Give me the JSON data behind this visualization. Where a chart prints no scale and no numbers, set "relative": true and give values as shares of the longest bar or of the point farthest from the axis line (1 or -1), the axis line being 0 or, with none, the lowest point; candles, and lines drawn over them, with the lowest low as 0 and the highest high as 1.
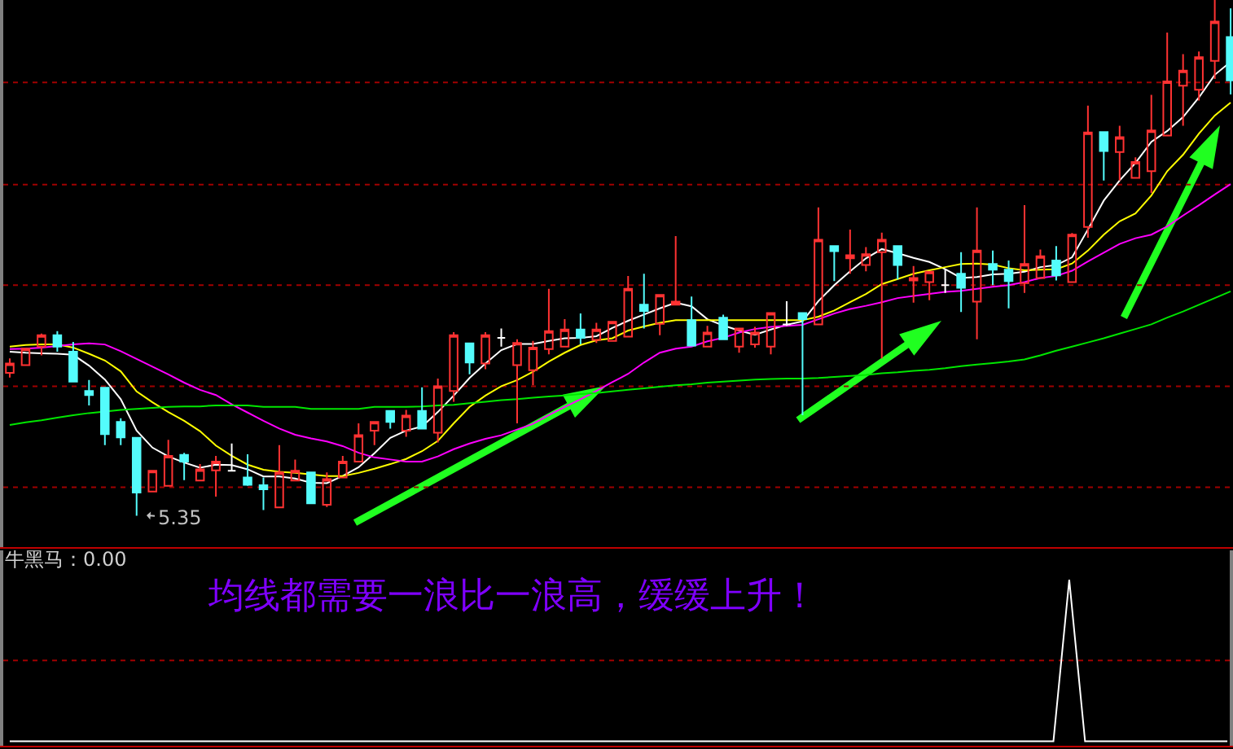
{
  "chart_data": [
    {
      "type": "candlestick",
      "relative": true,
      "categories": [
        null,
        null,
        null,
        null,
        null,
        null,
        null,
        null,
        null,
        null,
        null,
        null,
        null,
        null,
        null,
        null,
        null,
        null,
        null,
        null,
        null,
        null,
        null,
        null,
        null,
        null,
        null,
        null,
        null,
        null,
        null,
        null,
        null,
        null,
        null,
        null,
        null,
        null,
        null,
        null,
        null,
        null,
        null,
        null,
        null,
        null,
        null,
        null,
        null,
        null,
        null,
        null,
        null,
        null,
        null,
        null,
        null,
        null,
        null,
        null,
        null,
        null,
        null,
        null,
        null,
        null,
        null,
        null,
        null,
        null,
        null,
        null,
        null,
        null,
        null,
        null,
        null,
        null
      ],
      "ohlc": [
        [
          0.277,
          0.305,
          0.268,
          0.295
        ],
        [
          0.292,
          0.324,
          0.292,
          0.324
        ],
        [
          0.328,
          0.353,
          0.311,
          0.35
        ],
        [
          0.35,
          0.358,
          0.318,
          0.328
        ],
        [
          0.318,
          0.337,
          0.26,
          0.26
        ],
        [
          0.242,
          0.263,
          0.214,
          0.234
        ],
        [
          0.248,
          0.248,
          0.137,
          0.158
        ],
        [
          0.182,
          0.189,
          0.137,
          0.152
        ],
        [
          0.151,
          0.151,
          0,
          0.045
        ],
        [
          0.047,
          0.087,
          0.047,
          0.087
        ],
        [
          0.058,
          0.147,
          0.058,
          0.116
        ],
        [
          0.118,
          0.122,
          0.069,
          0.105
        ],
        [
          0.068,
          0.1,
          0.068,
          0.09
        ],
        [
          0.088,
          0.116,
          0.037,
          0.105
        ],
        [
          0.087,
          0.14,
          0.087,
          0.087
        ],
        [
          0.074,
          0.119,
          0.058,
          0.06
        ],
        [
          0.059,
          0.074,
          0.011,
          0.051
        ],
        [
          0.016,
          0.137,
          0.016,
          0.084
        ],
        [
          0.068,
          0.109,
          0.068,
          0.087
        ],
        [
          0.084,
          0.084,
          0.024,
          0.024
        ],
        [
          0.021,
          0.084,
          0.017,
          0.071
        ],
        [
          0.074,
          0.116,
          0.074,
          0.105
        ],
        [
          0.105,
          0.179,
          0.105,
          0.156
        ],
        [
          0.165,
          0.182,
          0.137,
          0.182
        ],
        [
          0.203,
          0.203,
          0.169,
          0.182
        ],
        [
          0.165,
          0.205,
          0.153,
          0.194
        ],
        [
          0.203,
          0.249,
          0.169,
          0.169
        ],
        [
          0.161,
          0.266,
          0.142,
          0.251
        ],
        [
          0.242,
          0.356,
          0.221,
          0.35
        ],
        [
          0.334,
          0.334,
          0.274,
          0.297
        ],
        [
          0.295,
          0.356,
          0.284,
          0.35
        ],
        [
          0.345,
          0.363,
          0.328,
          0.345
        ],
        [
          0.292,
          0.342,
          0.179,
          0.335
        ],
        [
          0.282,
          0.339,
          0.253,
          0.326
        ],
        [
          0.323,
          0.44,
          0.313,
          0.358
        ],
        [
          0.328,
          0.381,
          0.328,
          0.361
        ],
        [
          0.361,
          0.392,
          0.332,
          0.345
        ],
        [
          0.341,
          0.374,
          0.335,
          0.361
        ],
        [
          0.339,
          0.376,
          0.339,
          0.376
        ],
        [
          0.347,
          0.465,
          0.347,
          0.44
        ],
        [
          0.409,
          0.469,
          0.363,
          0.397
        ],
        [
          0.372,
          0.428,
          0.35,
          0.428
        ],
        [
          0.409,
          0.542,
          0.409,
          0.415
        ],
        [
          0.379,
          0.425,
          0.33,
          0.33
        ],
        [
          0.328,
          0.368,
          0.328,
          0.355
        ],
        [
          0.384,
          0.39,
          0.342,
          0.342
        ],
        [
          0.328,
          0.363,
          0.316,
          0.363
        ],
        [
          0.332,
          0.366,
          0.326,
          0.355
        ],
        [
          0.328,
          0.393,
          0.313,
          0.393
        ],
        [
          0.371,
          0.416,
          0.368,
          0.371
        ],
        [
          0.393,
          0.393,
          0.195,
          0.381
        ],
        [
          0.371,
          0.598,
          0.371,
          0.535
        ],
        [
          0.523,
          0.523,
          0.455,
          0.513
        ],
        [
          0.499,
          0.555,
          0.469,
          0.505
        ],
        [
          0.486,
          0.521,
          0.474,
          0.507
        ],
        [
          0.511,
          0.549,
          0.305,
          0.535
        ],
        [
          0.523,
          0.523,
          0.458,
          0.486
        ],
        [
          0.456,
          0.484,
          0.413,
          0.461
        ],
        [
          0.453,
          0.473,
          0.418,
          0.473
        ],
        [
          0.447,
          0.479,
          0.432,
          0.447
        ],
        [
          0.469,
          0.511,
          0.395,
          0.442
        ],
        [
          0.415,
          0.598,
          0.342,
          0.514
        ],
        [
          0.488,
          0.514,
          0.447,
          0.477
        ],
        [
          0.477,
          0.495,
          0.402,
          0.455
        ],
        [
          0.451,
          0.602,
          0.432,
          0.488
        ],
        [
          0.461,
          0.516,
          0.461,
          0.503
        ],
        [
          0.495,
          0.523,
          0.456,
          0.466
        ],
        [
          0.453,
          0.548,
          0.453,
          0.545
        ],
        [
          0.56,
          0.795,
          0.539,
          0.743
        ],
        [
          0.744,
          0.744,
          0.65,
          0.707
        ],
        [
          0.705,
          0.756,
          0.65,
          0.734
        ],
        [
          0.655,
          0.695,
          0.655,
          0.686
        ],
        [
          0.668,
          0.816,
          0.626,
          0.747
        ],
        [
          0.737,
          0.937,
          0.737,
          0.842
        ],
        [
          0.834,
          0.895,
          0.756,
          0.863
        ],
        [
          0.826,
          0.9,
          0.805,
          0.889
        ],
        [
          0.882,
          1,
          0.847,
          0.958
        ],
        [
          0.928,
          0.984,
          0.817,
          0.844
        ]
      ],
      "colors": [
        "#ff3232",
        "#ff3232",
        "#ff3232",
        "#54fcfc",
        "#54fcfc",
        "#54fcfc",
        "#54fcfc",
        "#54fcfc",
        "#54fcfc",
        "#ff3232",
        "#ff3232",
        "#54fcfc",
        "#ff3232",
        "#ff3232",
        "#ffffff",
        "#54fcfc",
        "#54fcfc",
        "#ff3232",
        "#ff3232",
        "#54fcfc",
        "#ff3232",
        "#ff3232",
        "#ff3232",
        "#ff3232",
        "#54fcfc",
        "#ff3232",
        "#54fcfc",
        "#ff3232",
        "#ff3232",
        "#54fcfc",
        "#ff3232",
        "#ffffff",
        "#ff3232",
        "#ff3232",
        "#ff3232",
        "#ff3232",
        "#54fcfc",
        "#ff3232",
        "#ff3232",
        "#ff3232",
        "#54fcfc",
        "#ff3232",
        "#ff3232",
        "#54fcfc",
        "#ff3232",
        "#54fcfc",
        "#ff3232",
        "#ff3232",
        "#ff3232",
        "#ffffff",
        "#54fcfc",
        "#ff3232",
        "#54fcfc",
        "#ff3232",
        "#ff3232",
        "#ff3232",
        "#54fcfc",
        "#ff3232",
        "#ff3232",
        "#ffffff",
        "#54fcfc",
        "#ff3232",
        "#54fcfc",
        "#54fcfc",
        "#ff3232",
        "#ff3232",
        "#54fcfc",
        "#ff3232",
        "#ff3232",
        "#54fcfc",
        "#ff3232",
        "#ff3232",
        "#ff3232",
        "#ff3232",
        "#ff3232",
        "#ff3232",
        "#ff3232",
        "#54fcfc"
      ],
      "series": [
        {
          "type": "line",
          "color": "#ffffff",
          "values": [
            0.318,
            0.316,
            0.315,
            0.314,
            0.312,
            0.291,
            0.264,
            0.226,
            0.165,
            0.132,
            0.115,
            0.103,
            0.093,
            0.099,
            0.098,
            0.09,
            0.076,
            0.076,
            0.072,
            0.064,
            0.063,
            0.077,
            0.094,
            0.121,
            0.151,
            0.165,
            0.173,
            0.201,
            0.233,
            0.267,
            0.295,
            0.321,
            0.333,
            0.333,
            0.339,
            0.344,
            0.345,
            0.348,
            0.364,
            0.378,
            0.39,
            0.402,
            0.413,
            0.406,
            0.381,
            0.369,
            0.359,
            0.351,
            0.361,
            0.37,
            0.377,
            0.416,
            0.447,
            0.474,
            0.499,
            0.517,
            0.509,
            0.5,
            0.492,
            0.478,
            0.461,
            0.463,
            0.468,
            0.469,
            0.473,
            0.482,
            0.486,
            0.501,
            0.555,
            0.611,
            0.65,
            0.684,
            0.725,
            0.746,
            0.773,
            0.811,
            0.855,
            0.88
          ]
        },
        {
          "type": "line",
          "color": "#ffff00",
          "values": [
            0.328,
            0.331,
            0.332,
            0.332,
            0.326,
            0.314,
            0.301,
            0.28,
            0.241,
            0.22,
            0.201,
            0.184,
            0.164,
            0.136,
            0.116,
            0.099,
            0.089,
            0.085,
            0.083,
            0.08,
            0.077,
            0.077,
            0.083,
            0.091,
            0.1,
            0.11,
            0.125,
            0.145,
            0.179,
            0.211,
            0.233,
            0.251,
            0.263,
            0.279,
            0.299,
            0.316,
            0.331,
            0.34,
            0.344,
            0.359,
            0.367,
            0.374,
            0.379,
            0.379,
            0.379,
            0.379,
            0.379,
            0.379,
            0.379,
            0.379,
            0.379,
            0.386,
            0.398,
            0.414,
            0.43,
            0.449,
            0.459,
            0.469,
            0.476,
            0.482,
            0.488,
            0.489,
            0.487,
            0.48,
            0.476,
            0.477,
            0.478,
            0.489,
            0.514,
            0.545,
            0.571,
            0.586,
            0.621,
            0.668,
            0.7,
            0.741,
            0.776,
            0.801
          ]
        },
        {
          "type": "line",
          "color": "#ff00ff",
          "values": [
            0.323,
            0.324,
            0.326,
            0.329,
            0.332,
            0.334,
            0.332,
            0.319,
            0.304,
            0.289,
            0.274,
            0.258,
            0.244,
            0.234,
            0.216,
            0.2,
            0.184,
            0.169,
            0.157,
            0.15,
            0.144,
            0.135,
            0.122,
            0.113,
            0.109,
            0.105,
            0.105,
            0.115,
            0.129,
            0.14,
            0.149,
            0.156,
            0.167,
            0.178,
            0.195,
            0.211,
            0.226,
            0.242,
            0.259,
            0.275,
            0.297,
            0.316,
            0.324,
            0.328,
            0.338,
            0.345,
            0.355,
            0.362,
            0.366,
            0.368,
            0.37,
            0.381,
            0.392,
            0.401,
            0.407,
            0.414,
            0.422,
            0.426,
            0.43,
            0.434,
            0.436,
            0.44,
            0.444,
            0.447,
            0.453,
            0.461,
            0.465,
            0.475,
            0.493,
            0.51,
            0.527,
            0.538,
            0.545,
            0.561,
            0.582,
            0.602,
            0.623,
            0.643
          ]
        },
        {
          "type": "line",
          "color": "#00e600",
          "values": [
            0.176,
            0.181,
            0.185,
            0.19,
            0.195,
            0.199,
            0.202,
            0.205,
            0.207,
            0.209,
            0.211,
            0.212,
            0.212,
            0.214,
            0.214,
            0.214,
            0.211,
            0.211,
            0.211,
            0.207,
            0.207,
            0.207,
            0.207,
            0.211,
            0.211,
            0.211,
            0.212,
            0.214,
            0.215,
            0.218,
            0.221,
            0.224,
            0.226,
            0.229,
            0.231,
            0.233,
            0.236,
            0.238,
            0.241,
            0.244,
            0.247,
            0.25,
            0.253,
            0.255,
            0.258,
            0.26,
            0.262,
            0.264,
            0.265,
            0.266,
            0.266,
            0.267,
            0.269,
            0.271,
            0.273,
            0.276,
            0.278,
            0.281,
            0.283,
            0.286,
            0.29,
            0.293,
            0.296,
            0.299,
            0.303,
            0.311,
            0.32,
            0.328,
            0.336,
            0.344,
            0.353,
            0.362,
            0.371,
            0.384,
            0.396,
            0.409,
            0.422,
            0.435
          ]
        }
      ],
      "ref_lines": [
        {
          "axis": "y",
          "value": 0.84,
          "color": "#a00000",
          "line_style": "dotted"
        },
        {
          "axis": "y",
          "value": 0.642,
          "color": "#a00000",
          "line_style": "dotted"
        },
        {
          "axis": "y",
          "value": 0.447,
          "color": "#a00000",
          "line_style": "dotted"
        },
        {
          "axis": "y",
          "value": 0.251,
          "color": "#a00000",
          "line_style": "dotted"
        },
        {
          "axis": "y",
          "value": 0.055,
          "color": "#a00000",
          "line_style": "dotted"
        }
      ],
      "annotations": [
        "5.35"
      ]
    },
    {
      "type": "line",
      "relative": true,
      "title": "牛黑马：0.00",
      "categories": [
        null,
        null,
        null,
        null,
        null,
        null,
        null,
        null,
        null,
        null,
        null,
        null,
        null,
        null,
        null,
        null,
        null,
        null,
        null,
        null,
        null,
        null,
        null,
        null,
        null,
        null,
        null,
        null,
        null,
        null,
        null,
        null,
        null,
        null,
        null,
        null,
        null,
        null,
        null,
        null,
        null,
        null,
        null,
        null,
        null,
        null,
        null,
        null,
        null,
        null,
        null,
        null,
        null,
        null,
        null,
        null,
        null,
        null,
        null,
        null,
        null,
        null,
        null,
        null,
        null,
        null,
        null,
        null,
        null,
        null,
        null,
        null,
        null,
        null,
        null,
        null,
        null,
        null
      ],
      "series": [
        {
          "color": "#ffffff",
          "values": [
            0,
            0,
            0,
            0,
            0,
            0,
            0,
            0,
            0,
            0,
            0,
            0,
            0,
            0,
            0,
            0,
            0,
            0,
            0,
            0,
            0,
            0,
            0,
            0,
            0,
            0,
            0,
            0,
            0,
            0,
            0,
            0,
            0,
            0,
            0,
            0,
            0,
            0,
            0,
            0,
            0,
            0,
            0,
            0,
            0,
            0,
            0,
            0,
            0,
            0,
            0,
            0,
            0,
            0,
            0,
            0,
            0,
            0,
            0,
            0,
            0,
            0,
            0,
            0,
            0,
            0,
            0,
            1,
            0,
            0,
            0,
            0,
            0,
            0,
            0,
            0,
            0,
            0
          ]
        }
      ],
      "ref_lines": [
        {
          "axis": "y",
          "value": 0.5,
          "color": "#a00000",
          "line_style": "dotted"
        }
      ],
      "annotations": [
        "均线都需要一浪比一浪高，缓缓上升！"
      ]
    }
  ]
}
